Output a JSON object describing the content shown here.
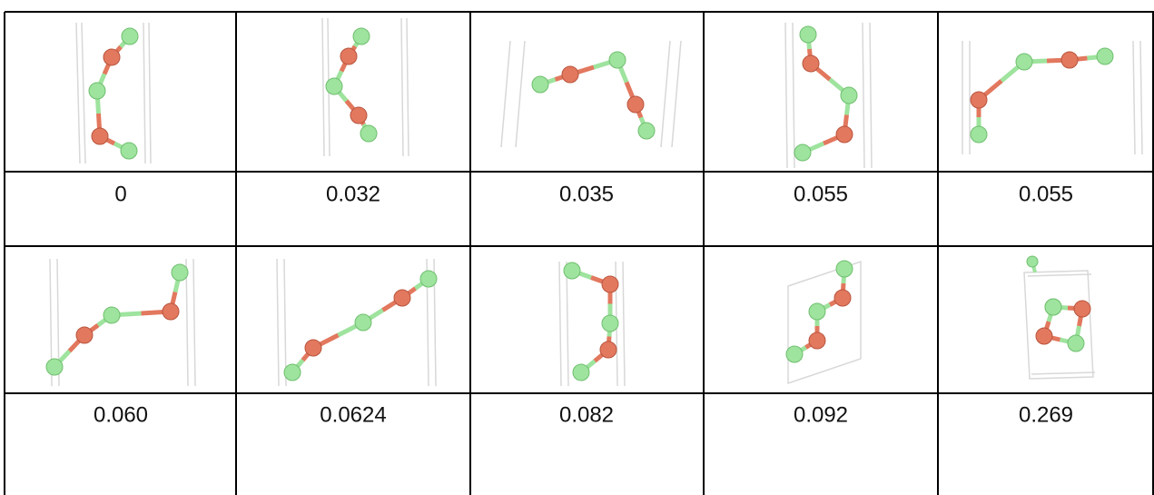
{
  "table": {
    "rows": [
      [
        "0",
        "0.032",
        "0.035",
        "0.055",
        "0.055"
      ],
      [
        "0.060",
        "0.0624",
        "0.082",
        "0.092",
        "0.269"
      ]
    ]
  }
}
